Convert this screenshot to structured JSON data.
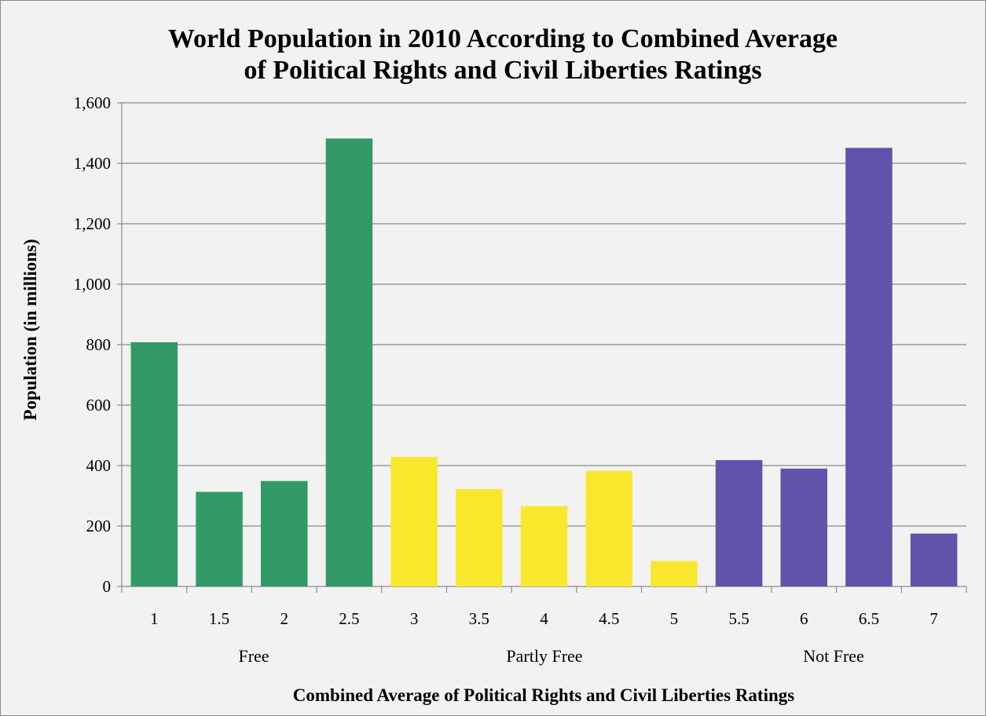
{
  "chart_data": {
    "type": "bar",
    "title": [
      "World Population in 2010 According to Combined Average",
      "of Political Rights and Civil Liberties Ratings"
    ],
    "xlabel": "Combined Average of Political Rights and Civil Liberties Ratings",
    "ylabel": "Population (in millions)",
    "ylim": [
      0,
      1600
    ],
    "yticks": [
      0,
      200,
      400,
      600,
      800,
      1000,
      1200,
      1400,
      1600
    ],
    "ytick_labels": [
      "0",
      "200",
      "400",
      "600",
      "800",
      "1,000",
      "1,200",
      "1,400",
      "1,600"
    ],
    "categories": [
      "1",
      "1.5",
      "2",
      "2.5",
      "3",
      "3.5",
      "4",
      "4.5",
      "5",
      "5.5",
      "6",
      "6.5",
      "7"
    ],
    "values": [
      808,
      313,
      349,
      1482,
      429,
      322,
      266,
      382,
      84,
      418,
      390,
      1451,
      175
    ],
    "groups": [
      {
        "label": "Free",
        "color": "#339966",
        "categories": [
          "1",
          "1.5",
          "2",
          "2.5"
        ]
      },
      {
        "label": "Partly Free",
        "color": "#f9e72e",
        "categories": [
          "3",
          "3.5",
          "4",
          "4.5",
          "5"
        ]
      },
      {
        "label": "Not Free",
        "color": "#5f53ab",
        "categories": [
          "5.5",
          "6",
          "6.5",
          "7"
        ]
      }
    ],
    "grid": true,
    "legend": "none",
    "background": "#f2f2f2"
  }
}
